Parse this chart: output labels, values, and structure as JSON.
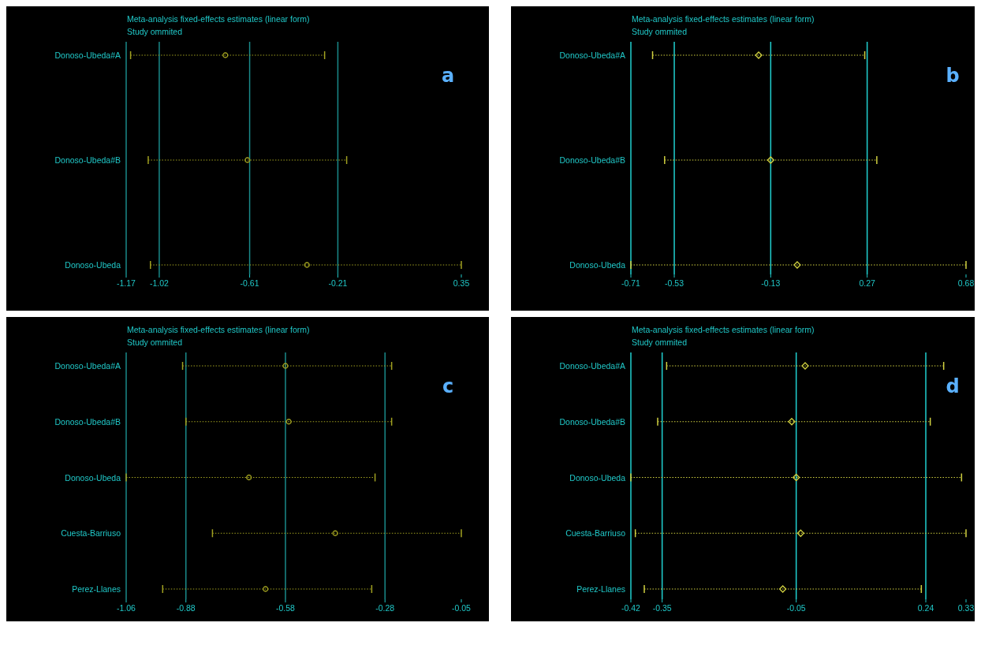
{
  "chart_data": [
    {
      "type": "scatter",
      "orientation": "horizontal",
      "title": "Meta-analysis fixed-effects estimates (linear form)",
      "subtitle": "Study ommited",
      "annotations": [
        "a"
      ],
      "categories": [
        "Donoso-Ubeda#A",
        "Donoso-Ubeda#B",
        "Donoso-Ubeda"
      ],
      "values": [
        -0.72,
        -0.62,
        -0.35
      ],
      "errors": [
        [
          -1.15,
          -0.27
        ],
        [
          -1.07,
          -0.17
        ],
        [
          -1.06,
          0.35
        ]
      ],
      "color": "#a0a020",
      "marker": "circle",
      "line_style": "dotted",
      "xlim": [
        -1.17,
        0.35
      ],
      "xticks": [
        -1.17,
        -1.02,
        -0.61,
        -0.21,
        0.35
      ],
      "ref_lines": [
        {
          "axis": "x",
          "value": -1.02,
          "color": "#1a8a8a"
        },
        {
          "axis": "x",
          "value": -0.61,
          "color": "#1a8a8a"
        },
        {
          "axis": "x",
          "value": -0.21,
          "color": "#1a8a8a"
        }
      ]
    },
    {
      "type": "scatter",
      "orientation": "horizontal",
      "title": "Meta-analysis fixed-effects estimates (linear form)",
      "subtitle": "Study ommited",
      "annotations": [
        "b"
      ],
      "categories": [
        "Donoso-Ubeda#A",
        "Donoso-Ubeda#B",
        "Donoso-Ubeda"
      ],
      "values": [
        -0.18,
        -0.13,
        -0.02
      ],
      "errors": [
        [
          -0.62,
          0.26
        ],
        [
          -0.57,
          0.31
        ],
        [
          -0.71,
          0.68
        ]
      ],
      "color": "#d0d040",
      "marker": "diamond",
      "line_style": "dotted",
      "xlim": [
        -0.71,
        0.68
      ],
      "xticks": [
        -0.71,
        -0.53,
        -0.13,
        0.27,
        0.68
      ],
      "ref_lines": [
        {
          "axis": "x",
          "value": -0.53,
          "color": "#20d0d0"
        },
        {
          "axis": "x",
          "value": -0.13,
          "color": "#20d0d0"
        },
        {
          "axis": "x",
          "value": 0.27,
          "color": "#20d0d0"
        }
      ]
    },
    {
      "type": "scatter",
      "orientation": "horizontal",
      "title": "Meta-analysis fixed-effects estimates (linear form)",
      "subtitle": "Study ommited",
      "annotations": [
        "c"
      ],
      "categories": [
        "Donoso-Ubeda#A",
        "Donoso-Ubeda#B",
        "Donoso-Ubeda",
        "Cuesta-Barriuso",
        "Perez-Llanes"
      ],
      "values": [
        -0.58,
        -0.57,
        -0.69,
        -0.43,
        -0.64
      ],
      "errors": [
        [
          -0.89,
          -0.26
        ],
        [
          -0.88,
          -0.26
        ],
        [
          -1.06,
          -0.31
        ],
        [
          -0.8,
          -0.05
        ],
        [
          -0.95,
          -0.32
        ]
      ],
      "color": "#a0a020",
      "marker": "circle",
      "line_style": "dotted",
      "xlim": [
        -1.06,
        -0.05
      ],
      "xticks": [
        -1.06,
        -0.88,
        -0.58,
        -0.28,
        -0.05
      ],
      "ref_lines": [
        {
          "axis": "x",
          "value": -0.88,
          "color": "#1a8a8a"
        },
        {
          "axis": "x",
          "value": -0.58,
          "color": "#1a8a8a"
        },
        {
          "axis": "x",
          "value": -0.28,
          "color": "#1a8a8a"
        }
      ]
    },
    {
      "type": "scatter",
      "orientation": "horizontal",
      "title": "Meta-analysis fixed-effects estimates (linear form)",
      "subtitle": "Study ommited",
      "annotations": [
        "d"
      ],
      "categories": [
        "Donoso-Ubeda#A",
        "Donoso-Ubeda#B",
        "Donoso-Ubeda",
        "Cuesta-Barriuso",
        "Perez-Llanes"
      ],
      "values": [
        -0.03,
        -0.06,
        -0.05,
        -0.04,
        -0.08
      ],
      "errors": [
        [
          -0.34,
          0.28
        ],
        [
          -0.36,
          0.25
        ],
        [
          -0.42,
          0.32
        ],
        [
          -0.41,
          0.33
        ],
        [
          -0.39,
          0.23
        ]
      ],
      "color": "#d0d040",
      "marker": "diamond",
      "line_style": "dotted",
      "xlim": [
        -0.42,
        0.33
      ],
      "xticks": [
        -0.42,
        -0.35,
        -0.05,
        0.24,
        0.33
      ],
      "ref_lines": [
        {
          "axis": "x",
          "value": -0.35,
          "color": "#20d0d0"
        },
        {
          "axis": "x",
          "value": -0.05,
          "color": "#20d0d0"
        },
        {
          "axis": "x",
          "value": 0.24,
          "color": "#20d0d0"
        }
      ]
    }
  ]
}
